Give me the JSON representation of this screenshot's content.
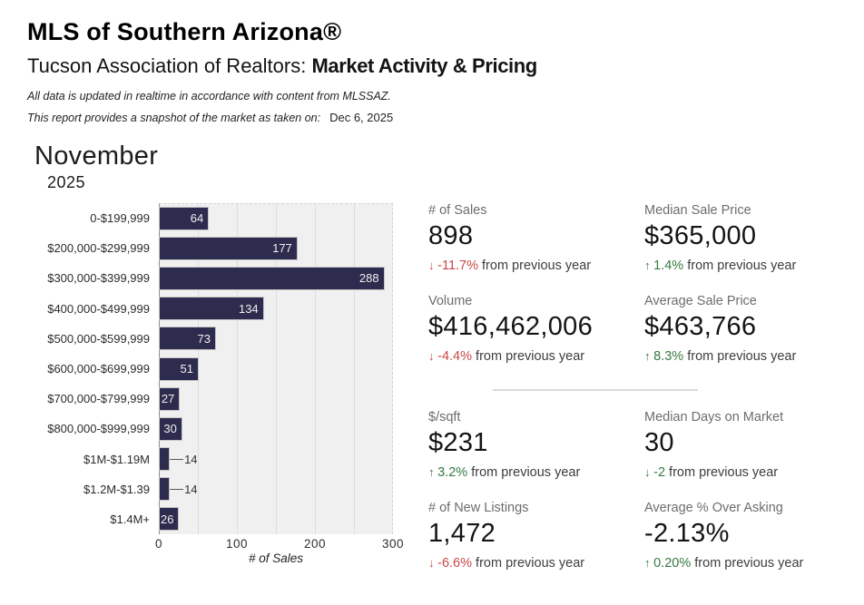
{
  "header": {
    "title": "MLS of Southern Arizona®",
    "subtitle": "Tucson Association of Realtors: ",
    "subtitle_emphasis": "Market Activity & Pricing",
    "note_line1": "All data is updated in realtime in accordance with content from MLSSAZ.",
    "note_line2": "This report provides a snapshot of the market as taken on:",
    "snapshot_date": "Dec 6, 2025"
  },
  "period": {
    "month": "November",
    "year": "2025"
  },
  "chart_data": {
    "type": "bar",
    "orientation": "horizontal",
    "title": "",
    "categories": [
      "0-$199,999",
      "$200,000-$299,999",
      "$300,000-$399,999",
      "$400,000-$499,999",
      "$500,000-$599,999",
      "$600,000-$699,999",
      "$700,000-$799,999",
      "$800,000-$999,999",
      "$1M-$1.19M",
      "$1.2M-$1.39",
      "$1.4M+"
    ],
    "values": [
      64,
      177,
      288,
      134,
      73,
      51,
      27,
      30,
      14,
      14,
      26
    ],
    "xlabel": "# of Sales",
    "ylabel": "",
    "xlim": [
      0,
      300
    ],
    "xticks": [
      0,
      100,
      200,
      300
    ],
    "gridline_step": 50,
    "grid": true,
    "legend": false,
    "bar_color": "#2e2c4e",
    "plot_background": "#f1f0f1",
    "value_label_outside_threshold": 20
  },
  "stats": [
    {
      "id": "number-of-sales",
      "label": "# of Sales",
      "value": "898",
      "direction": "down",
      "change": "-11.7%",
      "change_color": "#c94646",
      "suffix": " from previous year"
    },
    {
      "id": "median-sale-price",
      "label": "Median Sale Price",
      "value": "$365,000",
      "direction": "up",
      "change": "1.4%",
      "change_color": "#37793f",
      "suffix": " from previous year"
    },
    {
      "id": "volume",
      "label": "Volume",
      "value": "$416,462,006",
      "direction": "down",
      "change": "-4.4%",
      "change_color": "#c94646",
      "suffix": " from previous year"
    },
    {
      "id": "average-sale-price",
      "label": "Average Sale Price",
      "value": "$463,766",
      "direction": "up",
      "change": "8.3%",
      "change_color": "#37793f",
      "suffix": " from previous year"
    },
    {
      "id": "price-per-sqft",
      "label": "$/sqft",
      "value": "$231",
      "direction": "up",
      "change": "3.2%",
      "change_color": "#37793f",
      "suffix": " from previous year"
    },
    {
      "id": "median-days-on-market",
      "label": "Median Days on Market",
      "value": "30",
      "direction": "down",
      "change": "-2",
      "change_color": "#37793f",
      "suffix": " from previous year"
    },
    {
      "id": "new-listings",
      "label": "# of New Listings",
      "value": "1,472",
      "direction": "down",
      "change": "-6.6%",
      "change_color": "#c94646",
      "suffix": " from previous year"
    },
    {
      "id": "average-pct-over-asking",
      "label": "Average % Over Asking",
      "value": "-2.13%",
      "direction": "up",
      "change": "0.20%",
      "change_color": "#37793f",
      "suffix": " from previous year"
    }
  ],
  "colors": {
    "positive": "#37793f",
    "negative": "#c94646",
    "bar": "#2e2c4e",
    "divider": "#d9d9d9",
    "plot_background": "#f1f0f1"
  }
}
